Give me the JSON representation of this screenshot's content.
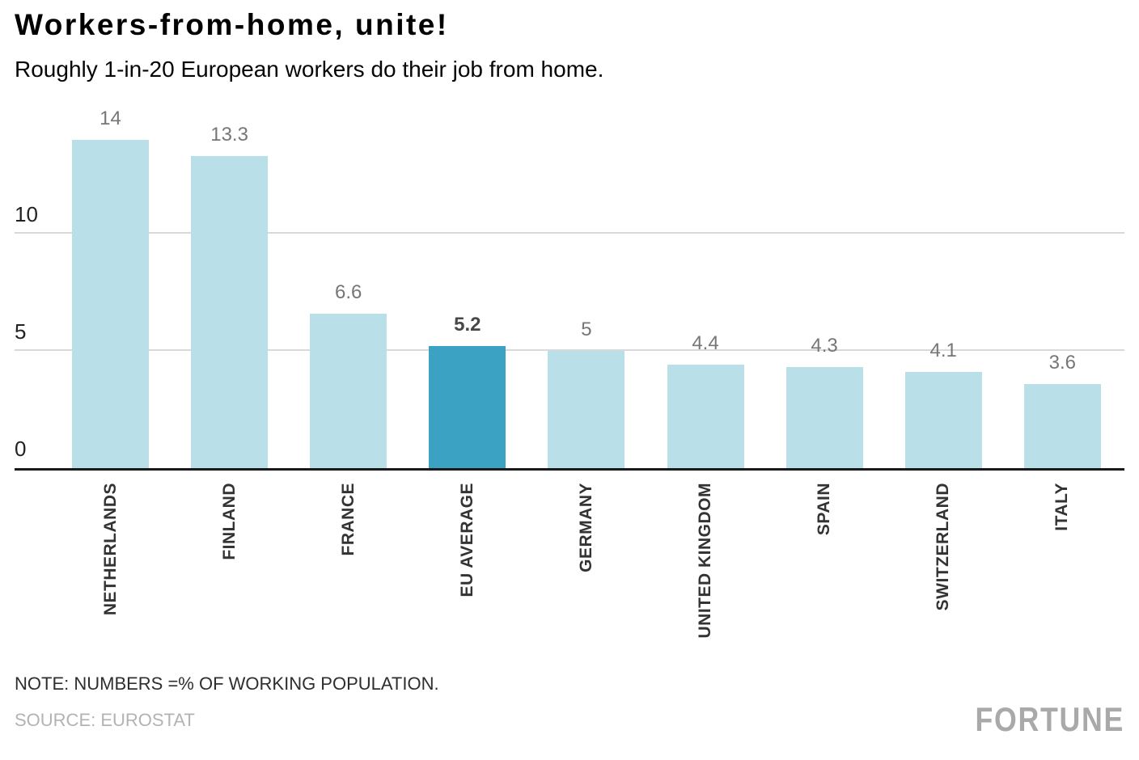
{
  "header": {
    "title": "Workers-from-home, unite!",
    "subtitle": "Roughly 1-in-20 European workers do their job from home."
  },
  "footer": {
    "note": "NOTE: NUMBERS =% OF WORKING POPULATION.",
    "source": "SOURCE: EUROSTAT",
    "brand": "FORTUNE"
  },
  "chart_data": {
    "type": "bar",
    "title": "Workers-from-home, unite!",
    "subtitle": "Roughly 1-in-20 European workers do their job from home.",
    "categories": [
      "NETHERLANDS",
      "FINLAND",
      "FRANCE",
      "EU AVERAGE",
      "GERMANY",
      "UNITED KINGDOM",
      "SPAIN",
      "SWITZERLAND",
      "ITALY"
    ],
    "values": [
      14,
      13.3,
      6.6,
      5.2,
      5,
      4.4,
      4.3,
      4.1,
      3.6
    ],
    "value_labels": [
      "14",
      "13.3",
      "6.6",
      "5.2",
      "5",
      "4.4",
      "4.3",
      "4.1",
      "3.6"
    ],
    "highlight_index": 3,
    "bar_color": "#B9DFE9",
    "highlight_color": "#3BA2C3",
    "gridline_color": "#D9D9D9",
    "axis_color": "#1A1A1A",
    "xlabel": "",
    "ylabel": "",
    "yticks": [
      0,
      5,
      10
    ],
    "ylim": [
      0,
      14.5
    ],
    "grid": "horizontal",
    "legend": "none"
  }
}
